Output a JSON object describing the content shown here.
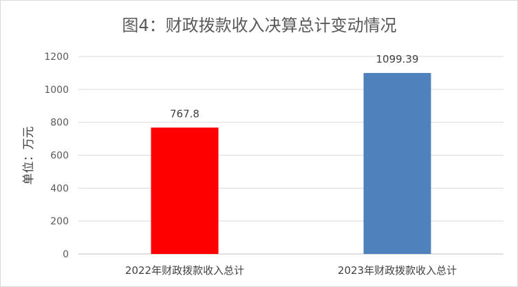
{
  "chart_data": {
    "type": "bar",
    "title": "图4：财政拨款收入决算总计变动情况",
    "ylabel": "单位：万元",
    "xlabel": "",
    "categories": [
      "2022年财政拨款收入总计",
      "2023年财政拨款收入总计"
    ],
    "values": [
      767.8,
      1099.39
    ],
    "value_labels": [
      "767.8",
      "1099.39"
    ],
    "bar_colors": [
      "#ff0000",
      "#4f81bd"
    ],
    "ylim": [
      0,
      1200
    ],
    "yticks": [
      0,
      200,
      400,
      600,
      800,
      1000,
      1200
    ],
    "ytick_labels": [
      "0",
      "200",
      "400",
      "600",
      "800",
      "1000",
      "1200"
    ],
    "grid": true,
    "legend": "none"
  }
}
